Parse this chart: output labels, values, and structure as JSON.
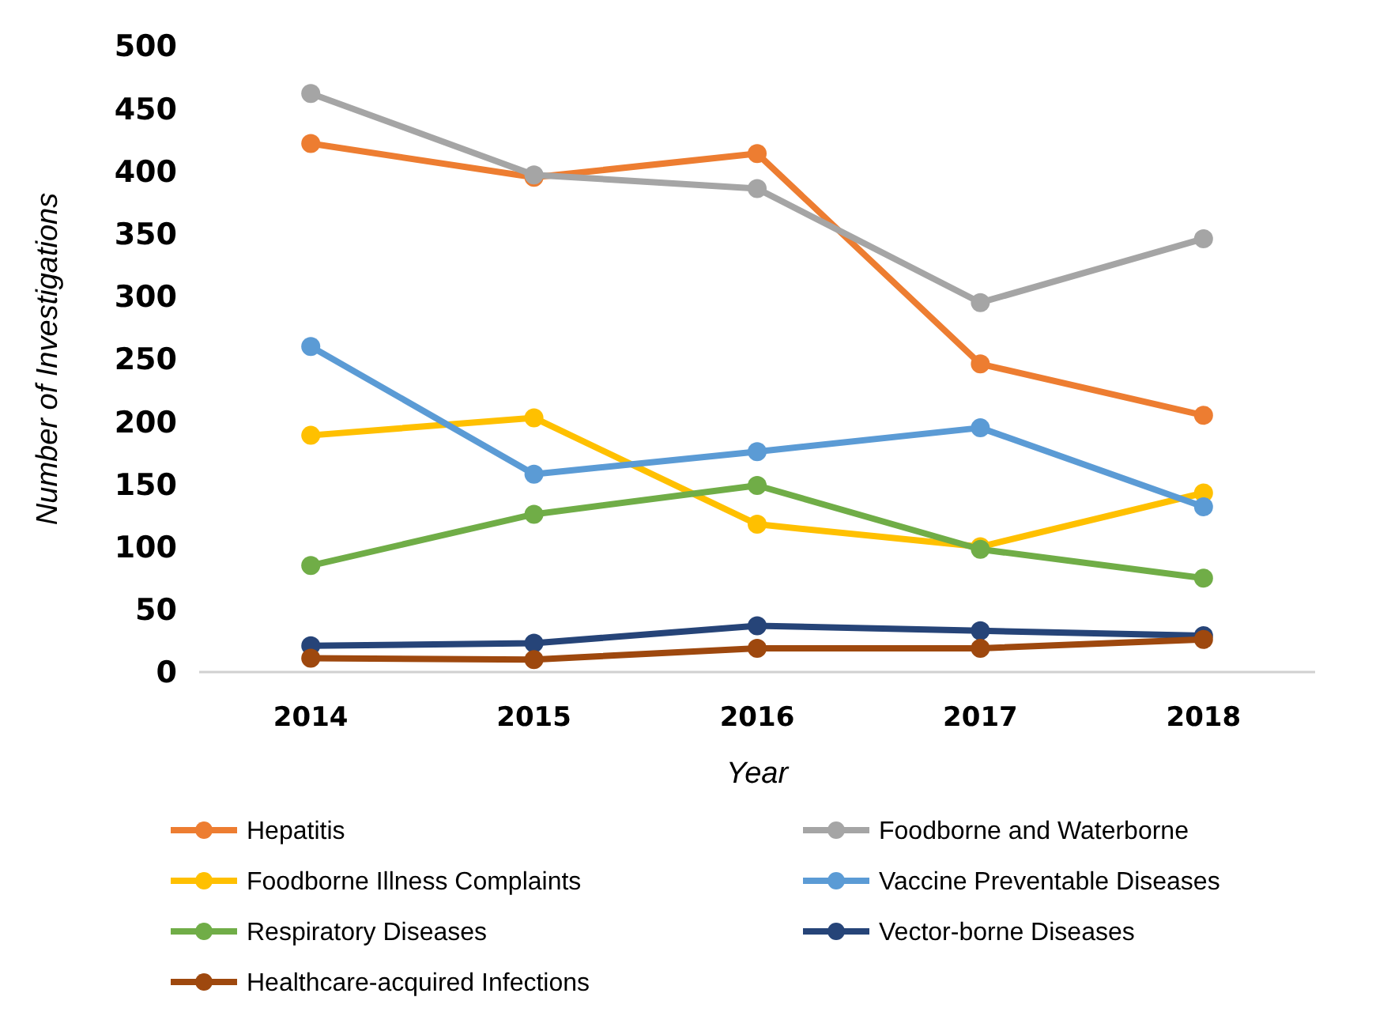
{
  "chart_data": {
    "type": "line",
    "xlabel": "Year",
    "ylabel": "Number of Investigations",
    "categories": [
      "2014",
      "2015",
      "2016",
      "2017",
      "2018"
    ],
    "ylim": [
      0,
      500
    ],
    "yticks": [
      0,
      50,
      100,
      150,
      200,
      250,
      300,
      350,
      400,
      450,
      500
    ],
    "grid": false,
    "legend": "bottom",
    "marker": "circle",
    "line_style": "solid",
    "series": [
      {
        "name": "Hepatitis",
        "color": "#ed7d31",
        "values": [
          422,
          395,
          414,
          246,
          205
        ]
      },
      {
        "name": "Foodborne and Waterborne",
        "color": "#a5a5a5",
        "values": [
          462,
          397,
          386,
          295,
          346
        ]
      },
      {
        "name": "Foodborne Illness Complaints",
        "color": "#ffc000",
        "values": [
          189,
          203,
          118,
          100,
          143
        ]
      },
      {
        "name": "Vaccine Preventable Diseases",
        "color": "#5b9bd5",
        "values": [
          260,
          158,
          176,
          195,
          132
        ]
      },
      {
        "name": "Respiratory Diseases",
        "color": "#70ad47",
        "values": [
          85,
          126,
          149,
          98,
          75
        ]
      },
      {
        "name": "Vector-borne Diseases",
        "color": "#264478",
        "values": [
          21,
          23,
          37,
          33,
          29
        ]
      },
      {
        "name": "Healthcare-acquired Infections",
        "color": "#9e480e",
        "values": [
          11,
          10,
          19,
          19,
          26
        ]
      }
    ]
  }
}
